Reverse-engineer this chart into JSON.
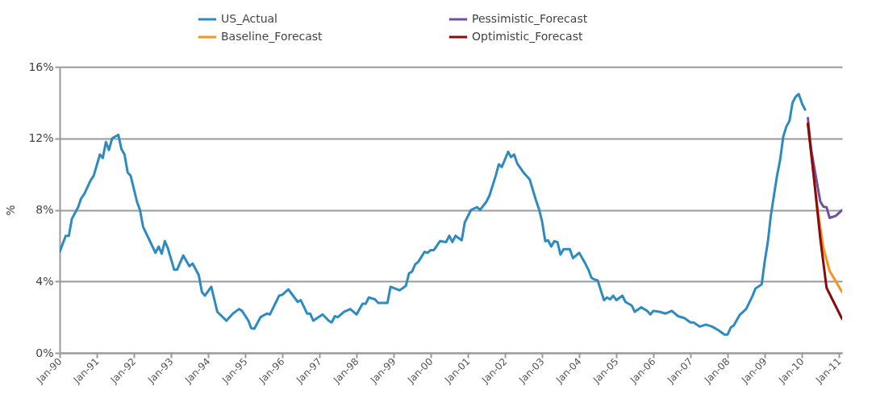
{
  "chart_data": {
    "type": "line",
    "ylabel": "%",
    "legend": "top",
    "grid": "y",
    "marker": "none",
    "line_style": "solid",
    "xlim": [
      "1990-01",
      "2011-02"
    ],
    "xticks": [
      {
        "value": "1990-01",
        "label": "Jan-90"
      },
      {
        "value": "1991-01",
        "label": "Jan-91"
      },
      {
        "value": "1992-01",
        "label": "Jan-92"
      },
      {
        "value": "1993-01",
        "label": "Jan-93"
      },
      {
        "value": "1994-01",
        "label": "Jan-94"
      },
      {
        "value": "1995-01",
        "label": "Jan-95"
      },
      {
        "value": "1996-01",
        "label": "Jan-96"
      },
      {
        "value": "1997-01",
        "label": "Jan-97"
      },
      {
        "value": "1998-01",
        "label": "Jan-98"
      },
      {
        "value": "1999-01",
        "label": "Jan-99"
      },
      {
        "value": "2000-01",
        "label": "Jan-00"
      },
      {
        "value": "2001-01",
        "label": "Jan-01"
      },
      {
        "value": "2002-01",
        "label": "Jan-02"
      },
      {
        "value": "2003-01",
        "label": "Jan-03"
      },
      {
        "value": "2004-01",
        "label": "Jan-04"
      },
      {
        "value": "2005-01",
        "label": "Jan-05"
      },
      {
        "value": "2006-01",
        "label": "Jan-06"
      },
      {
        "value": "2007-01",
        "label": "Jan-07"
      },
      {
        "value": "2008-01",
        "label": "Jan-08"
      },
      {
        "value": "2009-01",
        "label": "Jan-09"
      },
      {
        "value": "2010-01",
        "label": "Jan-10"
      },
      {
        "value": "2011-01",
        "label": "Jan-11"
      }
    ],
    "ylim": [
      0,
      16
    ],
    "yticks": [
      {
        "value": 0,
        "label": "0%"
      },
      {
        "value": 4,
        "label": "4%"
      },
      {
        "value": 8,
        "label": "8%"
      },
      {
        "value": 12,
        "label": "12%"
      },
      {
        "value": 16,
        "label": "16%"
      }
    ],
    "series": [
      {
        "name": "US_Actual",
        "color": "#2e8bc0",
        "x": [
          "1990-01",
          "1990-03",
          "1990-04",
          "1990-05",
          "1990-07",
          "1990-08",
          "1990-09",
          "1990-11",
          "1990-12",
          "1991-02",
          "1991-03",
          "1991-04",
          "1991-05",
          "1991-06",
          "1991-08",
          "1991-09",
          "1991-10",
          "1991-11",
          "1991-12",
          "1992-02",
          "1992-03",
          "1992-04",
          "1992-08",
          "1992-09",
          "1992-10",
          "1992-11",
          "1992-12",
          "1993-02",
          "1993-03",
          "1993-05",
          "1993-07",
          "1993-08",
          "1993-10",
          "1993-11",
          "1993-12",
          "1994-02",
          "1994-04",
          "1994-07",
          "1994-09",
          "1994-11",
          "1994-12",
          "1995-02",
          "1995-03",
          "1995-04",
          "1995-06",
          "1995-08",
          "1995-09",
          "1995-12",
          "1996-01",
          "1996-03",
          "1996-06",
          "1996-07",
          "1996-09",
          "1996-10",
          "1996-11",
          "1997-02",
          "1997-04",
          "1997-05",
          "1997-06",
          "1997-07",
          "1997-09",
          "1997-11",
          "1998-01",
          "1998-03",
          "1998-04",
          "1998-05",
          "1998-07",
          "1998-08",
          "1998-11",
          "1998-12",
          "1999-03",
          "1999-05",
          "1999-06",
          "1999-07",
          "1999-08",
          "1999-09",
          "1999-11",
          "1999-12",
          "2000-01",
          "2000-02",
          "2000-04",
          "2000-06",
          "2000-07",
          "2000-08",
          "2000-09",
          "2000-11",
          "2000-12",
          "2001-02",
          "2001-04",
          "2001-05",
          "2001-07",
          "2001-08",
          "2001-10",
          "2001-11",
          "2001-12",
          "2002-02",
          "2002-03",
          "2002-04",
          "2002-05",
          "2002-07",
          "2002-09",
          "2002-11",
          "2002-12",
          "2003-01",
          "2003-02",
          "2003-03",
          "2003-04",
          "2003-05",
          "2003-06",
          "2003-07",
          "2003-08",
          "2003-10",
          "2003-11",
          "2004-01",
          "2004-03",
          "2004-04",
          "2004-05",
          "2004-06",
          "2004-07",
          "2004-09",
          "2004-10",
          "2004-11",
          "2004-12",
          "2005-01",
          "2005-03",
          "2005-04",
          "2005-06",
          "2005-07",
          "2005-09",
          "2005-11",
          "2005-12",
          "2006-01",
          "2006-03",
          "2006-05",
          "2006-07",
          "2006-09",
          "2006-11",
          "2007-01",
          "2007-02",
          "2007-04",
          "2007-06",
          "2007-08",
          "2007-10",
          "2007-12",
          "2008-01",
          "2008-02",
          "2008-03",
          "2008-05",
          "2008-07",
          "2008-09",
          "2008-10",
          "2008-12",
          "2009-01",
          "2009-02",
          "2009-03",
          "2009-05",
          "2009-06",
          "2009-07",
          "2009-08",
          "2009-09",
          "2009-10",
          "2009-11",
          "2009-12",
          "2010-01",
          "2010-02"
        ],
        "values": [
          5.65,
          6.55,
          6.55,
          7.5,
          8.15,
          8.65,
          8.9,
          9.65,
          9.9,
          11.1,
          10.9,
          11.8,
          11.35,
          12.0,
          12.2,
          11.4,
          11.1,
          10.1,
          9.9,
          8.45,
          8.0,
          7.05,
          5.6,
          5.95,
          5.55,
          6.25,
          5.85,
          4.65,
          4.65,
          5.45,
          4.85,
          5.0,
          4.35,
          3.4,
          3.2,
          3.7,
          2.3,
          1.8,
          2.2,
          2.45,
          2.35,
          1.8,
          1.38,
          1.35,
          2.0,
          2.2,
          2.15,
          3.2,
          3.25,
          3.55,
          2.85,
          2.95,
          2.2,
          2.2,
          1.8,
          2.15,
          1.8,
          1.7,
          2.05,
          2.0,
          2.3,
          2.45,
          2.15,
          2.75,
          2.75,
          3.1,
          3.0,
          2.8,
          2.8,
          3.7,
          3.5,
          3.75,
          4.45,
          4.55,
          4.95,
          5.1,
          5.65,
          5.6,
          5.75,
          5.75,
          6.25,
          6.2,
          6.55,
          6.2,
          6.55,
          6.3,
          7.3,
          8.0,
          8.15,
          8.0,
          8.45,
          8.8,
          9.9,
          10.55,
          10.4,
          11.25,
          10.95,
          11.1,
          10.6,
          10.1,
          9.7,
          8.55,
          8.05,
          7.35,
          6.25,
          6.3,
          5.95,
          6.25,
          6.2,
          5.5,
          5.8,
          5.8,
          5.3,
          5.6,
          5.0,
          4.65,
          4.2,
          4.1,
          4.05,
          2.95,
          3.1,
          3.0,
          3.2,
          2.95,
          3.2,
          2.85,
          2.65,
          2.3,
          2.55,
          2.35,
          2.15,
          2.35,
          2.3,
          2.2,
          2.35,
          2.05,
          1.95,
          1.7,
          1.7,
          1.47,
          1.58,
          1.47,
          1.27,
          1.03,
          1.03,
          1.42,
          1.53,
          2.14,
          2.45,
          3.17,
          3.6,
          3.83,
          5.14,
          6.25,
          7.67,
          9.9,
          10.8,
          12.08,
          12.66,
          12.98,
          14.0,
          14.33,
          14.48,
          13.97,
          13.61
        ]
      },
      {
        "name": "Baseline_Forecast",
        "color": "#f7941d",
        "x": [
          "2010-03",
          "2010-06",
          "2010-08",
          "2010-10",
          "2011-02"
        ],
        "values": [
          12.82,
          8.17,
          5.86,
          4.59,
          3.4
        ]
      },
      {
        "name": "Pessimistic_Forecast",
        "color": "#7050a0",
        "x": [
          "2010-03",
          "2010-04",
          "2010-07",
          "2010-08",
          "2010-09",
          "2010-10",
          "2010-12",
          "2011-02"
        ],
        "values": [
          13.14,
          11.4,
          8.47,
          8.18,
          8.15,
          7.55,
          7.67,
          7.99
        ]
      },
      {
        "name": "Optimistic_Forecast",
        "color": "#8b0a0a",
        "x": [
          "2010-03",
          "2010-05",
          "2010-07",
          "2010-09",
          "2011-02"
        ],
        "values": [
          12.82,
          9.73,
          6.41,
          3.64,
          1.9
        ]
      }
    ]
  }
}
